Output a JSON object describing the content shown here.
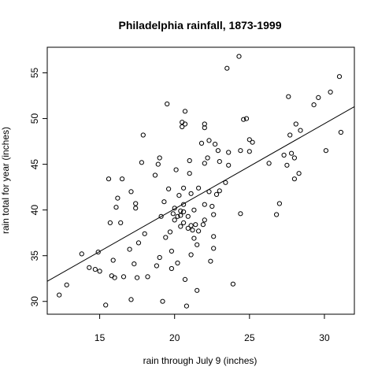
{
  "chart_data": {
    "type": "scatter",
    "title": "Philadelphia rainfall, 1873-1999",
    "xlabel": "rain through July 9 (inches)",
    "ylabel": "rain total for year (inches)",
    "xlim": [
      11.5,
      32
    ],
    "ylim": [
      28.6,
      57.8
    ],
    "xticks": [
      15,
      20,
      25,
      30
    ],
    "yticks": [
      30,
      35,
      40,
      45,
      50,
      55
    ],
    "grid": false,
    "legend": "none",
    "marker": "open-circle",
    "regression_line": {
      "x": [
        11.5,
        32
      ],
      "y": [
        32.2,
        51.3
      ]
    },
    "points": [
      [
        12.3,
        30.7
      ],
      [
        12.8,
        31.8
      ],
      [
        13.8,
        35.2
      ],
      [
        14.3,
        33.7
      ],
      [
        14.7,
        33.5
      ],
      [
        14.9,
        35.4
      ],
      [
        15.0,
        33.3
      ],
      [
        15.4,
        29.6
      ],
      [
        15.6,
        43.4
      ],
      [
        15.7,
        38.6
      ],
      [
        15.8,
        32.8
      ],
      [
        15.9,
        34.5
      ],
      [
        16.0,
        32.6
      ],
      [
        16.1,
        40.3
      ],
      [
        16.2,
        41.3
      ],
      [
        16.4,
        38.6
      ],
      [
        16.5,
        43.4
      ],
      [
        16.6,
        32.7
      ],
      [
        17.0,
        35.7
      ],
      [
        17.1,
        30.2
      ],
      [
        17.1,
        42.0
      ],
      [
        17.3,
        34.1
      ],
      [
        17.4,
        40.2
      ],
      [
        17.4,
        40.7
      ],
      [
        17.5,
        32.6
      ],
      [
        17.6,
        36.4
      ],
      [
        17.8,
        45.2
      ],
      [
        17.9,
        48.2
      ],
      [
        18.0,
        37.4
      ],
      [
        18.2,
        32.7
      ],
      [
        18.7,
        43.8
      ],
      [
        18.8,
        33.9
      ],
      [
        18.9,
        45.0
      ],
      [
        19.0,
        34.8
      ],
      [
        19.0,
        45.7
      ],
      [
        19.1,
        39.3
      ],
      [
        19.2,
        30.0
      ],
      [
        19.3,
        40.9
      ],
      [
        19.4,
        37.0
      ],
      [
        19.5,
        51.6
      ],
      [
        19.6,
        42.3
      ],
      [
        19.7,
        37.6
      ],
      [
        19.8,
        33.6
      ],
      [
        19.8,
        35.5
      ],
      [
        19.9,
        39.6
      ],
      [
        20.0,
        38.9
      ],
      [
        20.0,
        40.2
      ],
      [
        20.1,
        44.4
      ],
      [
        20.2,
        34.2
      ],
      [
        20.2,
        39.3
      ],
      [
        20.3,
        41.6
      ],
      [
        20.4,
        38.2
      ],
      [
        20.4,
        39.4
      ],
      [
        20.4,
        39.9
      ],
      [
        20.5,
        49.1
      ],
      [
        20.5,
        49.6
      ],
      [
        20.6,
        38.6
      ],
      [
        20.6,
        39.8
      ],
      [
        20.6,
        40.6
      ],
      [
        20.6,
        42.4
      ],
      [
        20.7,
        32.4
      ],
      [
        20.7,
        49.4
      ],
      [
        20.7,
        50.8
      ],
      [
        20.8,
        29.5
      ],
      [
        20.9,
        38.0
      ],
      [
        20.9,
        39.3
      ],
      [
        21.0,
        44.0
      ],
      [
        21.0,
        45.4
      ],
      [
        21.1,
        35.1
      ],
      [
        21.1,
        38.3
      ],
      [
        21.1,
        41.8
      ],
      [
        21.2,
        37.8
      ],
      [
        21.3,
        40.0
      ],
      [
        21.3,
        36.9
      ],
      [
        21.4,
        38.4
      ],
      [
        21.5,
        31.2
      ],
      [
        21.5,
        36.2
      ],
      [
        21.6,
        37.7
      ],
      [
        21.6,
        42.4
      ],
      [
        21.8,
        47.3
      ],
      [
        21.9,
        38.4
      ],
      [
        22.0,
        49.0
      ],
      [
        22.0,
        49.4
      ],
      [
        22.0,
        38.9
      ],
      [
        22.0,
        40.6
      ],
      [
        22.0,
        45.1
      ],
      [
        22.2,
        45.7
      ],
      [
        22.3,
        47.6
      ],
      [
        22.3,
        42.0
      ],
      [
        22.4,
        34.4
      ],
      [
        22.5,
        40.4
      ],
      [
        22.6,
        35.8
      ],
      [
        22.6,
        37.1
      ],
      [
        22.6,
        39.5
      ],
      [
        22.7,
        47.2
      ],
      [
        22.8,
        41.7
      ],
      [
        22.9,
        46.5
      ],
      [
        23.0,
        42.1
      ],
      [
        23.0,
        45.3
      ],
      [
        23.4,
        43.0
      ],
      [
        23.5,
        55.5
      ],
      [
        23.6,
        44.9
      ],
      [
        23.6,
        46.3
      ],
      [
        23.9,
        31.9
      ],
      [
        24.3,
        56.8
      ],
      [
        24.4,
        39.6
      ],
      [
        24.4,
        46.5
      ],
      [
        24.6,
        49.9
      ],
      [
        24.8,
        50.0
      ],
      [
        25.0,
        47.7
      ],
      [
        25.0,
        46.4
      ],
      [
        25.2,
        47.4
      ],
      [
        26.3,
        45.1
      ],
      [
        26.8,
        39.5
      ],
      [
        27.0,
        40.7
      ],
      [
        27.3,
        46.0
      ],
      [
        27.5,
        44.9
      ],
      [
        27.6,
        52.4
      ],
      [
        27.7,
        48.2
      ],
      [
        27.8,
        46.2
      ],
      [
        28.0,
        45.7
      ],
      [
        28.0,
        43.4
      ],
      [
        28.1,
        49.4
      ],
      [
        28.3,
        44.0
      ],
      [
        28.4,
        48.7
      ],
      [
        29.3,
        51.5
      ],
      [
        29.6,
        52.3
      ],
      [
        30.1,
        46.5
      ],
      [
        30.4,
        52.9
      ],
      [
        31.0,
        54.6
      ],
      [
        31.1,
        48.5
      ]
    ]
  }
}
